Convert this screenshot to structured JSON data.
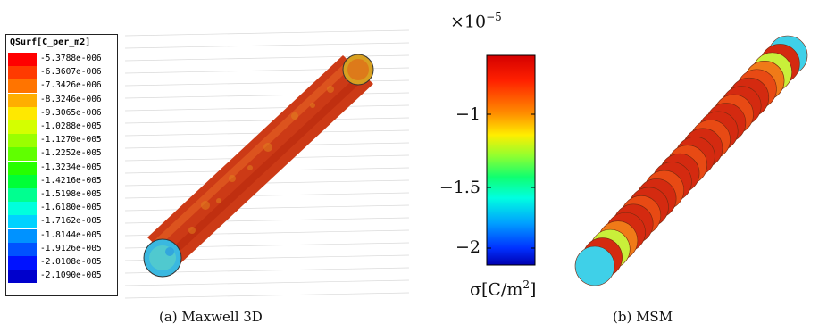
{
  "panel_a": {
    "legend_title": "QSurf[C_per_m2]",
    "legend": [
      {
        "label": "-5.3788e-006",
        "color": "#ff0000"
      },
      {
        "label": "-6.3607e-006",
        "color": "#ff3a00"
      },
      {
        "label": "-7.3426e-006",
        "color": "#ff7400"
      },
      {
        "label": "-8.3246e-006",
        "color": "#ffae00"
      },
      {
        "label": "-9.3065e-006",
        "color": "#ffe800"
      },
      {
        "label": "-1.0288e-005",
        "color": "#d4ff00"
      },
      {
        "label": "-1.1270e-005",
        "color": "#9aff00"
      },
      {
        "label": "-1.2252e-005",
        "color": "#60ff00"
      },
      {
        "label": "-1.3234e-005",
        "color": "#26ff00"
      },
      {
        "label": "-1.4216e-005",
        "color": "#00ff36"
      },
      {
        "label": "-1.5198e-005",
        "color": "#00ff90"
      },
      {
        "label": "-1.6180e-005",
        "color": "#00ffdd"
      },
      {
        "label": "-1.7162e-005",
        "color": "#00d2ff"
      },
      {
        "label": "-1.8144e-005",
        "color": "#0092ff"
      },
      {
        "label": "-1.9126e-005",
        "color": "#0052ff"
      },
      {
        "label": "-2.0108e-005",
        "color": "#0012ff"
      },
      {
        "label": "-2.1090e-005",
        "color": "#0000cc"
      }
    ],
    "caption": "(a) Maxwell 3D"
  },
  "panel_b": {
    "colorbar_exponent_base": "×10",
    "colorbar_exponent_power": "−5",
    "ticks": [
      "−1",
      "−1.5",
      "−2"
    ],
    "unit_prefix": "σ[C/m",
    "unit_power": "2",
    "unit_suffix": "]",
    "caption": "(b) MSM"
  },
  "colors": {
    "rod_red": "#d42a10",
    "cap_cyan": "#3fd0e8",
    "orange": "#f07a18",
    "yellowgreen": "#c9f03a"
  }
}
